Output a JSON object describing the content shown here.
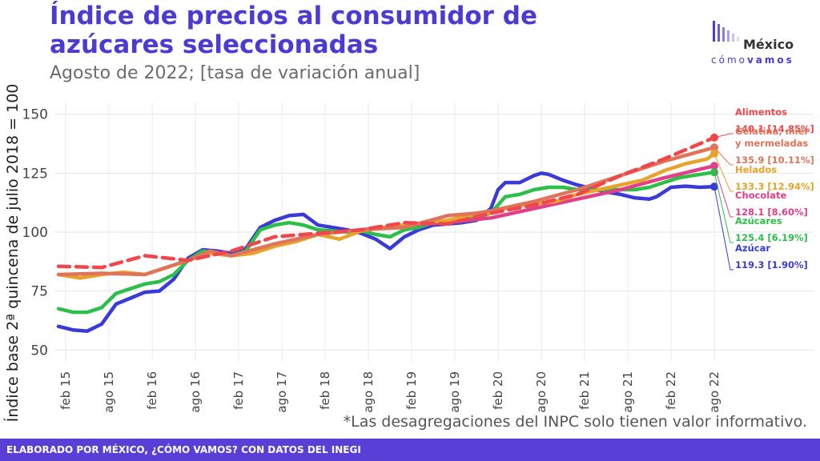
{
  "header": {
    "title": "Índice de precios al consumidor de azúcares seleccionadas",
    "subtitle": "Agosto de 2022; [tasa de variación anual]"
  },
  "logo": {
    "word": "México",
    "sub_light": "cómo",
    "sub_bold": "vamos"
  },
  "footer": {
    "credit": "ELABORADO POR MÉXICO, ¿CÓMO VAMOS? CON DATOS DEL INEGI",
    "note": "*Las desagregaciones del INPC solo tienen valor informativo."
  },
  "chart_data": {
    "type": "line",
    "ylabel": "Índice base 2ª quincena de julio 2018 = 100",
    "xlabel": "",
    "ylim": [
      45,
      155
    ],
    "yticks": [
      50,
      75,
      100,
      125,
      150
    ],
    "x_start": "2015-01",
    "x_end": "2022-08",
    "xtick_labels": [
      "feb 15",
      "ago 15",
      "feb 16",
      "ago 16",
      "feb 17",
      "ago 17",
      "feb 18",
      "ago 18",
      "feb 19",
      "ago 19",
      "feb 20",
      "ago 20",
      "feb 21",
      "ago 21",
      "feb 22",
      "ago 22"
    ],
    "grid": true,
    "series": [
      {
        "name": "Alimentos",
        "color": "#f0474c",
        "dashed": true,
        "label_lines": [
          "Alimentos"
        ],
        "value_label": "140.1 [14.85%]",
        "last": 140.1,
        "values": [
          [
            0,
            85.5
          ],
          [
            6,
            85
          ],
          [
            12,
            90
          ],
          [
            18,
            88
          ],
          [
            24,
            92
          ],
          [
            30,
            98
          ],
          [
            36,
            99.5
          ],
          [
            42,
            101
          ],
          [
            48,
            104
          ],
          [
            54,
            103.5
          ],
          [
            60,
            108
          ],
          [
            66,
            111.5
          ],
          [
            72,
            116
          ],
          [
            78,
            124
          ],
          [
            84,
            131
          ],
          [
            91,
            140.1
          ]
        ]
      },
      {
        "name": "Gelatina, miel y mermeladas",
        "color": "#e0745a",
        "dashed": false,
        "label_lines": [
          "Gelatina, miel",
          "y mermeladas"
        ],
        "value_label": "135.9 [10.11%]",
        "last": 135.9,
        "values": [
          [
            0,
            82
          ],
          [
            6,
            82.5
          ],
          [
            12,
            82
          ],
          [
            18,
            88
          ],
          [
            21,
            92
          ],
          [
            24,
            90
          ],
          [
            30,
            95
          ],
          [
            36,
            99
          ],
          [
            42,
            101
          ],
          [
            48,
            102
          ],
          [
            54,
            107
          ],
          [
            58,
            108
          ],
          [
            60,
            109
          ],
          [
            66,
            113
          ],
          [
            72,
            118
          ],
          [
            78,
            124
          ],
          [
            84,
            130
          ],
          [
            91,
            135.9
          ]
        ]
      },
      {
        "name": "Helados",
        "color": "#e7a32a",
        "dashed": false,
        "label_lines": [
          "Helados"
        ],
        "value_label": "133.3 [12.94%]",
        "last": 133.3,
        "values": [
          [
            0,
            82
          ],
          [
            3,
            80.5
          ],
          [
            6,
            82
          ],
          [
            9,
            83
          ],
          [
            12,
            82
          ],
          [
            15,
            85
          ],
          [
            18,
            88
          ],
          [
            21,
            91
          ],
          [
            24,
            90
          ],
          [
            27,
            91
          ],
          [
            30,
            94
          ],
          [
            33,
            96
          ],
          [
            36,
            99
          ],
          [
            39,
            97
          ],
          [
            42,
            100.5
          ],
          [
            45,
            102
          ],
          [
            48,
            103
          ],
          [
            54,
            105
          ],
          [
            57,
            107
          ],
          [
            60,
            108
          ],
          [
            63,
            111
          ],
          [
            66,
            112
          ],
          [
            69,
            113
          ],
          [
            72,
            116
          ],
          [
            75,
            118
          ],
          [
            78,
            120
          ],
          [
            81,
            122
          ],
          [
            84,
            126
          ],
          [
            87,
            129
          ],
          [
            90,
            131
          ],
          [
            91,
            133.3
          ]
        ]
      },
      {
        "name": "Chocolate",
        "color": "#e0408a",
        "dashed": false,
        "label_lines": [
          "Chocolate"
        ],
        "value_label": "128.1 [8.60%]",
        "last": 128.1,
        "values": [
          [
            42,
            101
          ],
          [
            48,
            103
          ],
          [
            54,
            104
          ],
          [
            60,
            106
          ],
          [
            66,
            110
          ],
          [
            72,
            114
          ],
          [
            78,
            118
          ],
          [
            84,
            123
          ],
          [
            91,
            128.1
          ]
        ]
      },
      {
        "name": "Azúcares",
        "color": "#2cbf4a",
        "dashed": false,
        "label_lines": [
          "Azúcares"
        ],
        "value_label": "125.4 [6.19%]",
        "last": 125.4,
        "values": [
          [
            0,
            67.5
          ],
          [
            2,
            66
          ],
          [
            4,
            66
          ],
          [
            6,
            68
          ],
          [
            8,
            74
          ],
          [
            10,
            76
          ],
          [
            12,
            78
          ],
          [
            14,
            79
          ],
          [
            16,
            82
          ],
          [
            18,
            88
          ],
          [
            20,
            92
          ],
          [
            22,
            91
          ],
          [
            24,
            90
          ],
          [
            26,
            92
          ],
          [
            28,
            101
          ],
          [
            30,
            103
          ],
          [
            32,
            104
          ],
          [
            34,
            103
          ],
          [
            36,
            101
          ],
          [
            38,
            100.5
          ],
          [
            40,
            100
          ],
          [
            42,
            100.5
          ],
          [
            44,
            99
          ],
          [
            46,
            98
          ],
          [
            48,
            101
          ],
          [
            50,
            102
          ],
          [
            52,
            104
          ],
          [
            54,
            104
          ],
          [
            56,
            105
          ],
          [
            58,
            106
          ],
          [
            60,
            108
          ],
          [
            62,
            115
          ],
          [
            64,
            116
          ],
          [
            66,
            118
          ],
          [
            68,
            119
          ],
          [
            70,
            119
          ],
          [
            72,
            118
          ],
          [
            74,
            118
          ],
          [
            76,
            118
          ],
          [
            78,
            118
          ],
          [
            80,
            118
          ],
          [
            82,
            119
          ],
          [
            84,
            121
          ],
          [
            86,
            123
          ],
          [
            88,
            124
          ],
          [
            91,
            125.4
          ]
        ]
      },
      {
        "name": "Azúcar",
        "color": "#3a3ad8",
        "dashed": false,
        "label_lines": [
          "Azúcar"
        ],
        "value_label": "119.3 [1.90%]",
        "last": 119.3,
        "values": [
          [
            0,
            60
          ],
          [
            2,
            58.5
          ],
          [
            4,
            58
          ],
          [
            6,
            61
          ],
          [
            8,
            69.5
          ],
          [
            10,
            72
          ],
          [
            12,
            74.5
          ],
          [
            14,
            75
          ],
          [
            16,
            80
          ],
          [
            18,
            89
          ],
          [
            20,
            92.5
          ],
          [
            22,
            92
          ],
          [
            24,
            91
          ],
          [
            26,
            93
          ],
          [
            28,
            102
          ],
          [
            30,
            105
          ],
          [
            32,
            107
          ],
          [
            34,
            107.5
          ],
          [
            36,
            103
          ],
          [
            38,
            102
          ],
          [
            40,
            101
          ],
          [
            42,
            99.5
          ],
          [
            44,
            97
          ],
          [
            46,
            93
          ],
          [
            48,
            98
          ],
          [
            50,
            101
          ],
          [
            52,
            103
          ],
          [
            54,
            103.5
          ],
          [
            56,
            104
          ],
          [
            58,
            105
          ],
          [
            60,
            110
          ],
          [
            61,
            118
          ],
          [
            62,
            121
          ],
          [
            64,
            121
          ],
          [
            66,
            124
          ],
          [
            67,
            125
          ],
          [
            68,
            124.5
          ],
          [
            70,
            122
          ],
          [
            72,
            120
          ],
          [
            74,
            118.5
          ],
          [
            76,
            117
          ],
          [
            78,
            116
          ],
          [
            80,
            114.5
          ],
          [
            82,
            114
          ],
          [
            83,
            115
          ],
          [
            85,
            119
          ],
          [
            87,
            119.5
          ],
          [
            89,
            119
          ],
          [
            91,
            119.3
          ]
        ]
      }
    ]
  }
}
